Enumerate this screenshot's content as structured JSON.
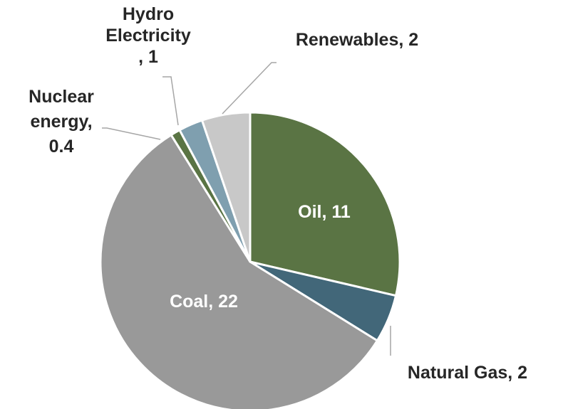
{
  "chart_data": {
    "type": "pie",
    "title": "",
    "slices": [
      {
        "label": "Oil, 11",
        "name": "Oil",
        "value": 11,
        "color": "#5a7444"
      },
      {
        "label": "Natural Gas, 2",
        "name": "Natural Gas",
        "value": 2,
        "color": "#426779"
      },
      {
        "label": "Coal, 22",
        "name": "Coal",
        "value": 22,
        "color": "#999999"
      },
      {
        "label": "Nuclear energy, 0.4",
        "name": "Nuclear energy",
        "value": 0.4,
        "color": "#5a7444"
      },
      {
        "label": "Hydro Electricity, 1",
        "name": "Hydro Electricity",
        "value": 1,
        "color": "#7f9faf"
      },
      {
        "label": "Renewables, 2",
        "name": "Renewables",
        "value": 2,
        "color": "#c8c8c8"
      }
    ],
    "start_angle": "12 o'clock, clockwise",
    "legend": "none (data labels on slices)"
  }
}
